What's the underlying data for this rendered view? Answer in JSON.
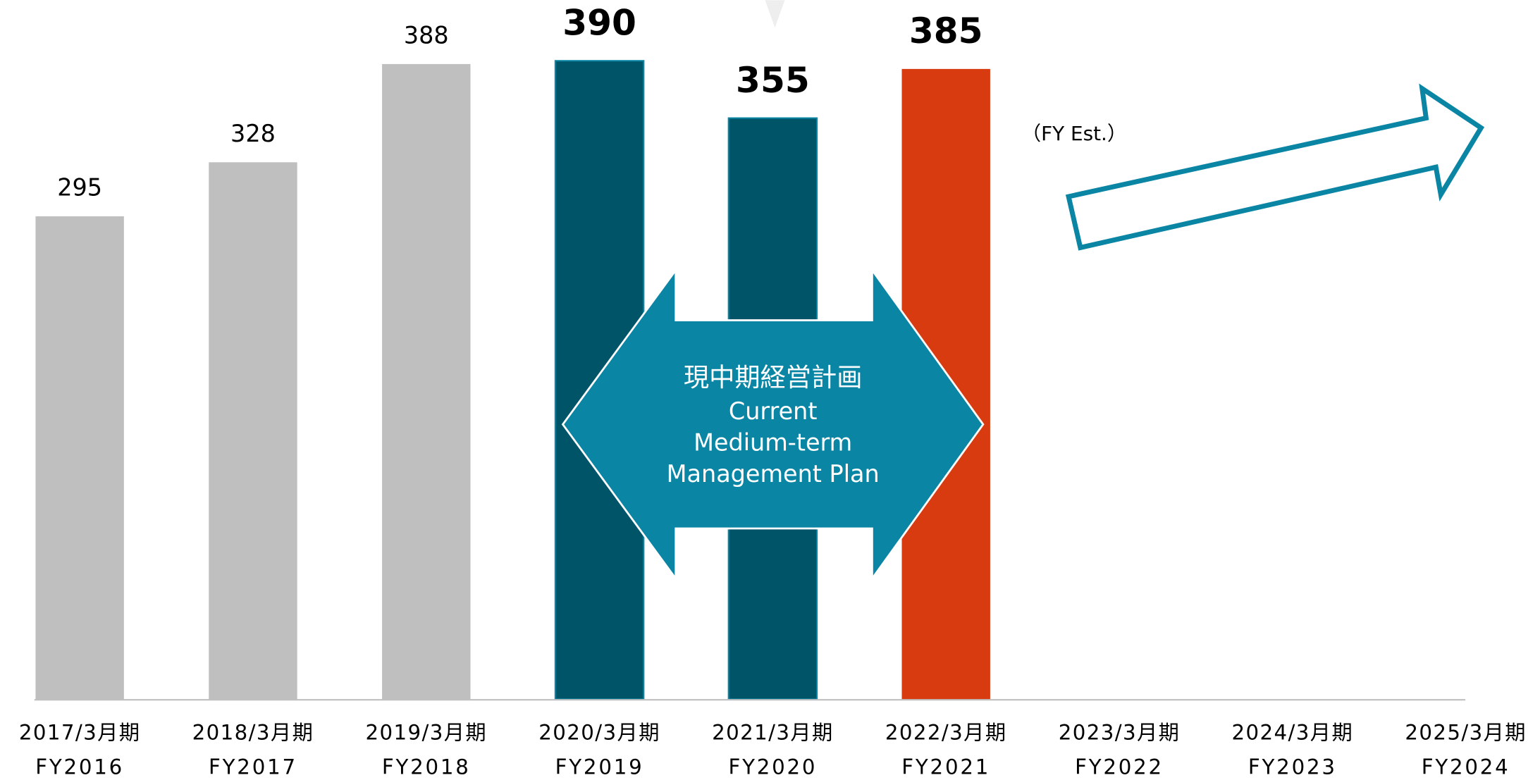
{
  "chart_data": {
    "type": "bar",
    "categories": [
      "2017/3月期",
      "2018/3月期",
      "2019/3月期",
      "2020/3月期",
      "2021/3月期",
      "2022/3月期",
      "2023/3月期",
      "2024/3月期",
      "2025/3月期"
    ],
    "fiscal_years": [
      "FY2016",
      "FY2017",
      "FY2018",
      "FY2019",
      "FY2020",
      "FY2021",
      "FY2022",
      "FY2023",
      "FY2024"
    ],
    "values": [
      295,
      328,
      388,
      390,
      355,
      385,
      null,
      null,
      null
    ],
    "colors": [
      "#bfbfbf",
      "#bfbfbf",
      "#bfbfbf",
      "#005467",
      "#005467",
      "#d83b10",
      null,
      null,
      null
    ],
    "emphasized": [
      false,
      false,
      false,
      true,
      true,
      true,
      null,
      null,
      null
    ],
    "ylim": [
      0,
      427
    ],
    "annotation": "（FY Est.）",
    "plan_label": [
      "現中期経営計画",
      "Current",
      "Medium-term",
      "Management Plan"
    ]
  }
}
